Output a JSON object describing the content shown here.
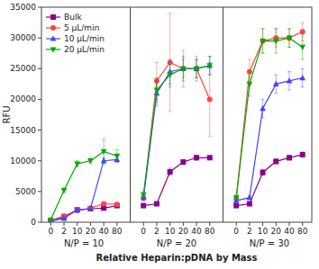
{
  "chart_data": {
    "type": "line",
    "y_label": "RFU",
    "x_label": "Relative Heparin:pDNA by Mass",
    "annotations": [
      "N/P = 10",
      "N/P = 20",
      "N/P = 30"
    ],
    "categories": [
      "0",
      "2",
      "10",
      "20",
      "40",
      "80",
      null,
      "0",
      "2",
      "10",
      "20",
      "40",
      "80",
      null,
      "0",
      "2",
      "10",
      "20",
      "40",
      "80"
    ],
    "series": [
      {
        "name": "Bulk",
        "color": "#8B008B",
        "marker": "square",
        "values": [
          200,
          900,
          2000,
          2200,
          2300,
          2700,
          null,
          2700,
          3000,
          8200,
          9800,
          10500,
          10500,
          null,
          2700,
          3000,
          8100,
          9900,
          10500,
          11000
        ],
        "errors": [
          100,
          200,
          300,
          200,
          200,
          200,
          null,
          200,
          200,
          600,
          400,
          400,
          300,
          null,
          200,
          200,
          500,
          400,
          400,
          400
        ]
      },
      {
        "name": "5 μL/min",
        "color": "#FF4444",
        "marker": "circle",
        "values": [
          300,
          1000,
          1900,
          2300,
          3000,
          2900,
          null,
          4000,
          23000,
          26000,
          25000,
          25000,
          20000,
          null,
          3800,
          24500,
          29500,
          30000,
          30000,
          31000
        ],
        "errors": [
          100,
          300,
          300,
          300,
          300,
          300,
          null,
          500,
          3000,
          8000,
          3000,
          2000,
          6000,
          null,
          300,
          2000,
          2000,
          1500,
          1500,
          1500
        ]
      },
      {
        "name": "10 μL/min",
        "color": "#4444FF",
        "marker": "triangle-up",
        "values": [
          200,
          600,
          2000,
          2200,
          10000,
          10200,
          null,
          4000,
          21000,
          24500,
          25000,
          25000,
          25500,
          null,
          3500,
          4000,
          18500,
          22500,
          23000,
          23500
        ],
        "errors": [
          100,
          200,
          300,
          300,
          500,
          500,
          null,
          500,
          2000,
          2000,
          2000,
          1500,
          1500,
          null,
          300,
          300,
          1500,
          1500,
          1500,
          1500
        ]
      },
      {
        "name": "20 μL/min",
        "color": "#00AA00",
        "marker": "triangle-down",
        "values": [
          400,
          5200,
          9500,
          10000,
          11500,
          10800,
          null,
          4500,
          21500,
          24000,
          25000,
          25000,
          25500,
          null,
          4000,
          22500,
          29500,
          29500,
          30000,
          28500
        ],
        "errors": [
          100,
          400,
          500,
          400,
          2000,
          1000,
          null,
          500,
          2000,
          2000,
          1500,
          1500,
          1500,
          null,
          400,
          2000,
          2000,
          2000,
          1500,
          2000
        ]
      }
    ],
    "ylim": [
      0,
      35000
    ],
    "yticks": [
      0,
      5000,
      10000,
      15000,
      20000,
      25000,
      30000,
      35000
    ],
    "legend": "upper left",
    "grid": false
  }
}
